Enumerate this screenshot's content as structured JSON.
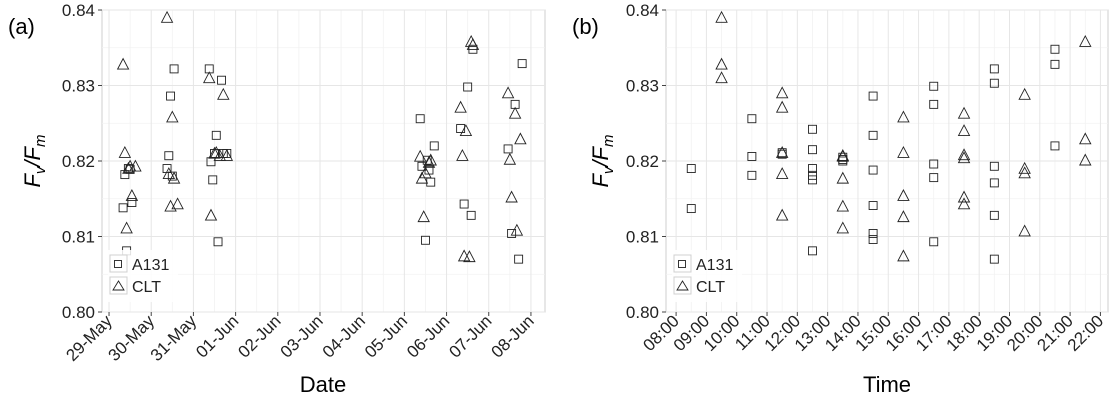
{
  "chart_data": [
    {
      "type": "scatter",
      "panel_label": "(a)",
      "xlabel": "Date",
      "ylabel": "F_v/F_m",
      "ylim": [
        0.8,
        0.84
      ],
      "yticks": [
        0.8,
        0.81,
        0.82,
        0.83,
        0.84
      ],
      "ytick_labels": [
        "0.80",
        "0.81",
        "0.82",
        "0.83",
        "0.84"
      ],
      "xlim": [
        "28-May 20:00",
        "08-Jun 08:00"
      ],
      "xticks": [
        "29-May",
        "30-May",
        "31-May",
        "01-Jun",
        "02-Jun",
        "03-Jun",
        "04-Jun",
        "05-Jun",
        "06-Jun",
        "07-Jun",
        "08-Jun"
      ],
      "grid": true,
      "legend": {
        "placement": "bottom-left",
        "entries": [
          "A131",
          "CLT"
        ]
      },
      "series": [
        {
          "name": "A131",
          "marker": "square",
          "x": [
            "29-May 08:00",
            "29-May 09:00",
            "29-May 10:00",
            "29-May 11:00",
            "29-May 12:00",
            "29-May 13:00",
            "30-May 09:00",
            "30-May 10:00",
            "30-May 11:00",
            "30-May 12:00",
            "30-May 13:00",
            "31-May 09:00",
            "31-May 10:00",
            "31-May 11:00",
            "31-May 12:00",
            "31-May 13:00",
            "31-May 14:00",
            "31-May 16:00",
            "31-May 17:00",
            "31-May 19:00",
            "05-Jun 09:00",
            "05-Jun 10:00",
            "05-Jun 12:00",
            "05-Jun 13:00",
            "05-Jun 14:00",
            "05-Jun 15:00",
            "05-Jun 17:00",
            "06-Jun 08:00",
            "06-Jun 10:00",
            "06-Jun 12:00",
            "06-Jun 14:00",
            "06-Jun 15:00",
            "07-Jun 11:00",
            "07-Jun 13:00",
            "07-Jun 15:00",
            "07-Jun 17:00",
            "07-Jun 19:00"
          ],
          "values": [
            0.8138,
            0.8182,
            0.8081,
            0.819,
            0.8189,
            0.8145,
            0.819,
            0.8207,
            0.8286,
            0.818,
            0.8322,
            0.8322,
            0.8199,
            0.8175,
            0.821,
            0.8234,
            0.8093,
            0.8307,
            0.821,
            0.821,
            0.8256,
            0.8193,
            0.8095,
            0.8201,
            0.8188,
            0.8172,
            0.822,
            0.8243,
            0.8143,
            0.8298,
            0.8128,
            0.8348,
            0.8216,
            0.8104,
            0.8275,
            0.807,
            0.8329
          ]
        },
        {
          "name": "CLT",
          "marker": "triangle",
          "x": [
            "29-May 08:00",
            "29-May 09:00",
            "29-May 10:00",
            "29-May 11:00",
            "29-May 12:00",
            "29-May 13:00",
            "29-May 15:00",
            "30-May 09:00",
            "30-May 10:00",
            "30-May 11:00",
            "30-May 12:00",
            "30-May 13:00",
            "30-May 15:00",
            "31-May 09:00",
            "31-May 10:00",
            "31-May 12:00",
            "31-May 13:00",
            "31-May 15:00",
            "31-May 17:00",
            "31-May 19:00",
            "05-Jun 09:00",
            "05-Jun 10:00",
            "05-Jun 11:00",
            "05-Jun 12:00",
            "05-Jun 14:00",
            "05-Jun 15:00",
            "06-Jun 08:00",
            "06-Jun 09:00",
            "06-Jun 10:00",
            "06-Jun 11:00",
            "06-Jun 13:00",
            "06-Jun 14:00",
            "06-Jun 15:00",
            "07-Jun 11:00",
            "07-Jun 12:00",
            "07-Jun 13:00",
            "07-Jun 15:00",
            "07-Jun 16:00",
            "07-Jun 18:00"
          ],
          "values": [
            0.8328,
            0.8211,
            0.8111,
            0.819,
            0.8193,
            0.8154,
            0.8193,
            0.839,
            0.8183,
            0.814,
            0.8258,
            0.8177,
            0.8143,
            0.831,
            0.8128,
            0.821,
            0.8211,
            0.8207,
            0.8288,
            0.8207,
            0.8206,
            0.8177,
            0.8126,
            0.8184,
            0.8198,
            0.8201,
            0.8271,
            0.8207,
            0.8074,
            0.824,
            0.8073,
            0.8358,
            0.8354,
            0.829,
            0.8202,
            0.8152,
            0.8263,
            0.8108,
            0.8229
          ]
        }
      ]
    },
    {
      "type": "scatter",
      "panel_label": "(b)",
      "xlabel": "Time",
      "ylabel": "F_v/F_m",
      "ylim": [
        0.8,
        0.84
      ],
      "yticks": [
        0.8,
        0.81,
        0.82,
        0.83,
        0.84
      ],
      "ytick_labels": [
        "0.80",
        "0.81",
        "0.82",
        "0.83",
        "0.84"
      ],
      "xlim": [
        "07:40",
        "22:15"
      ],
      "xticks": [
        "08:00",
        "09:00",
        "10:00",
        "11:00",
        "12:00",
        "13:00",
        "14:00",
        "15:00",
        "16:00",
        "17:00",
        "18:00",
        "19:00",
        "20:00",
        "21:00",
        "22:00"
      ],
      "grid": true,
      "legend": {
        "placement": "bottom-left",
        "entries": [
          "A131",
          "CLT"
        ]
      },
      "series": [
        {
          "name": "A131",
          "marker": "square",
          "x": [
            "08:30",
            "08:30",
            "10:30",
            "10:30",
            "10:30",
            "11:30",
            "11:30",
            "12:30",
            "12:30",
            "12:30",
            "12:30",
            "12:30",
            "12:30",
            "13:30",
            "13:30",
            "13:30",
            "14:30",
            "14:30",
            "14:30",
            "14:30",
            "14:30",
            "14:30",
            "16:30",
            "16:30",
            "16:30",
            "16:30",
            "16:30",
            "18:30",
            "18:30",
            "18:30",
            "18:30",
            "18:30",
            "18:30",
            "20:30",
            "20:30",
            "20:30"
          ],
          "values": [
            0.819,
            0.8137,
            0.8256,
            0.8206,
            0.8181,
            0.8211,
            0.8209,
            0.8242,
            0.8215,
            0.819,
            0.8175,
            0.8181,
            0.8081,
            0.8205,
            0.8202,
            0.82,
            0.8286,
            0.8234,
            0.8188,
            0.8141,
            0.8104,
            0.8096,
            0.8299,
            0.8275,
            0.8196,
            0.8178,
            0.8093,
            0.8322,
            0.8303,
            0.8193,
            0.8171,
            0.8128,
            0.807,
            0.8348,
            0.8328,
            0.822
          ]
        },
        {
          "name": "CLT",
          "marker": "triangle",
          "x": [
            "09:30",
            "09:30",
            "09:30",
            "11:30",
            "11:30",
            "11:30",
            "11:30",
            "11:30",
            "13:30",
            "13:30",
            "13:30",
            "13:30",
            "13:30",
            "15:30",
            "15:30",
            "15:30",
            "15:30",
            "15:30",
            "17:30",
            "17:30",
            "17:30",
            "17:30",
            "17:30",
            "17:30",
            "19:30",
            "19:30",
            "19:30",
            "19:30",
            "21:30",
            "21:30",
            "21:30"
          ],
          "values": [
            0.839,
            0.8328,
            0.831,
            0.829,
            0.8271,
            0.8211,
            0.8183,
            0.8128,
            0.8207,
            0.8206,
            0.8177,
            0.814,
            0.8111,
            0.8258,
            0.8211,
            0.8154,
            0.8126,
            0.8074,
            0.8263,
            0.824,
            0.8208,
            0.8204,
            0.8152,
            0.8143,
            0.8288,
            0.819,
            0.8184,
            0.8107,
            0.8358,
            0.8229,
            0.8201
          ]
        }
      ]
    }
  ]
}
